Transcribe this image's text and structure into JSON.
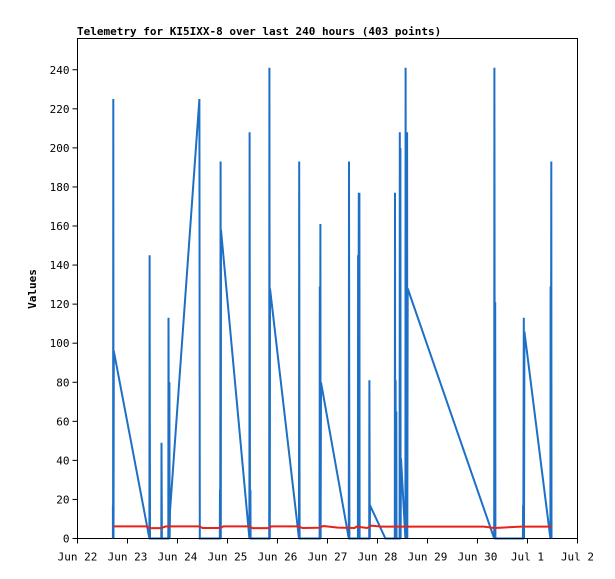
{
  "chart_data": {
    "type": "line",
    "title": "Telemetry for KI5IXX-8 over last 240 hours (403 points)",
    "xlabel": "",
    "ylabel": "Values",
    "xlim": [
      0,
      240
    ],
    "ylim": [
      0,
      256
    ],
    "x_ticks": [
      {
        "label": "Jun 22",
        "x": 0
      },
      {
        "label": "Jun 23",
        "x": 24
      },
      {
        "label": "Jun 24",
        "x": 48
      },
      {
        "label": "Jun 25",
        "x": 72
      },
      {
        "label": "Jun 26",
        "x": 96
      },
      {
        "label": "Jun 27",
        "x": 120
      },
      {
        "label": "Jun 28",
        "x": 144
      },
      {
        "label": "Jun 29",
        "x": 168
      },
      {
        "label": "Jun 30",
        "x": 192
      },
      {
        "label": "Jul 1",
        "x": 216
      },
      {
        "label": "Jul 2",
        "x": 240
      }
    ],
    "y_ticks": [
      0,
      20,
      40,
      60,
      80,
      100,
      120,
      140,
      160,
      180,
      200,
      220,
      240
    ],
    "grid": false,
    "series": [
      {
        "color": "#1e6fc6",
        "points": [
          [
            17.0,
            0
          ],
          [
            17.0,
            17
          ],
          [
            17.1,
            0
          ],
          [
            17.2,
            225
          ],
          [
            17.3,
            0
          ],
          [
            17.4,
            96
          ],
          [
            34.5,
            0
          ],
          [
            34.6,
            145
          ],
          [
            34.8,
            0
          ],
          [
            40.2,
            0
          ],
          [
            40.3,
            49
          ],
          [
            40.5,
            0
          ],
          [
            43.6,
            0
          ],
          [
            43.7,
            113
          ],
          [
            43.9,
            0
          ],
          [
            44.1,
            80
          ],
          [
            44.2,
            0
          ],
          [
            44.4,
            14
          ],
          [
            58.5,
            225
          ],
          [
            58.7,
            0
          ],
          [
            68.3,
            0
          ],
          [
            68.4,
            25
          ],
          [
            68.5,
            0
          ],
          [
            68.7,
            193
          ],
          [
            68.8,
            0
          ],
          [
            68.9,
            158
          ],
          [
            82.5,
            0
          ],
          [
            82.6,
            208
          ],
          [
            82.8,
            0
          ],
          [
            83.0,
            25
          ],
          [
            83.1,
            0
          ],
          [
            92.0,
            0
          ],
          [
            92.1,
            241
          ],
          [
            92.3,
            0
          ],
          [
            92.4,
            128
          ],
          [
            106.3,
            0
          ],
          [
            106.4,
            193
          ],
          [
            106.6,
            0
          ],
          [
            116.2,
            0
          ],
          [
            116.3,
            129
          ],
          [
            116.4,
            0
          ],
          [
            116.6,
            161
          ],
          [
            116.7,
            0
          ],
          [
            116.9,
            80
          ],
          [
            130.2,
            0
          ],
          [
            130.3,
            193
          ],
          [
            130.5,
            0
          ],
          [
            134.6,
            0
          ],
          [
            134.7,
            145
          ],
          [
            134.8,
            0
          ],
          [
            135.0,
            177
          ],
          [
            135.1,
            0
          ],
          [
            135.3,
            177
          ],
          [
            135.4,
            0
          ],
          [
            140.0,
            0
          ],
          [
            140.1,
            81
          ],
          [
            140.3,
            0
          ],
          [
            140.4,
            17
          ],
          [
            147.8,
            0
          ],
          [
            152.3,
            0
          ],
          [
            152.4,
            177
          ],
          [
            152.5,
            0
          ],
          [
            152.7,
            81
          ],
          [
            152.8,
            0
          ],
          [
            153.0,
            65
          ],
          [
            153.1,
            0
          ],
          [
            154.6,
            0
          ],
          [
            154.7,
            208
          ],
          [
            154.8,
            0
          ],
          [
            155.0,
            200
          ],
          [
            155.1,
            0
          ],
          [
            155.3,
            41
          ],
          [
            157.4,
            0
          ],
          [
            157.5,
            241
          ],
          [
            157.7,
            0
          ],
          [
            157.9,
            73
          ],
          [
            158.0,
            0
          ],
          [
            158.2,
            208
          ],
          [
            158.3,
            0
          ],
          [
            158.5,
            128
          ],
          [
            200.0,
            0
          ],
          [
            200.1,
            241
          ],
          [
            200.3,
            0
          ],
          [
            200.5,
            121
          ],
          [
            200.6,
            0
          ],
          [
            213.8,
            0
          ],
          [
            213.9,
            17
          ],
          [
            214.0,
            0
          ],
          [
            214.2,
            113
          ],
          [
            214.3,
            0
          ],
          [
            214.5,
            106
          ],
          [
            227.0,
            0
          ],
          [
            227.1,
            129
          ],
          [
            227.2,
            0
          ],
          [
            227.4,
            193
          ],
          [
            227.5,
            0
          ]
        ]
      },
      {
        "color": "#e8221b",
        "points": [
          [
            17.2,
            6.2
          ],
          [
            33,
            6.2
          ],
          [
            34.8,
            5.3
          ],
          [
            40,
            5.3
          ],
          [
            42.5,
            6.2
          ],
          [
            58.5,
            6.2
          ],
          [
            60,
            5.4
          ],
          [
            68.5,
            5.4
          ],
          [
            70,
            6.2
          ],
          [
            82.5,
            6.2
          ],
          [
            84,
            5.3
          ],
          [
            92,
            5.3
          ],
          [
            93,
            6.2
          ],
          [
            106,
            6.2
          ],
          [
            108,
            5.4
          ],
          [
            116,
            5.5
          ],
          [
            118,
            6.4
          ],
          [
            125,
            5.6
          ],
          [
            133,
            5.4
          ],
          [
            134,
            6.1
          ],
          [
            139,
            5.4
          ],
          [
            141,
            6.6
          ],
          [
            146,
            6.1
          ],
          [
            148,
            6.1
          ],
          [
            168,
            6.1
          ],
          [
            195,
            6.1
          ],
          [
            200,
            5.4
          ],
          [
            204,
            5.6
          ],
          [
            213,
            6.1
          ],
          [
            227.5,
            6.1
          ]
        ]
      },
      {
        "color": "#000000",
        "points": [
          [
            17.0,
            0
          ],
          [
            227.5,
            0
          ]
        ]
      }
    ]
  }
}
